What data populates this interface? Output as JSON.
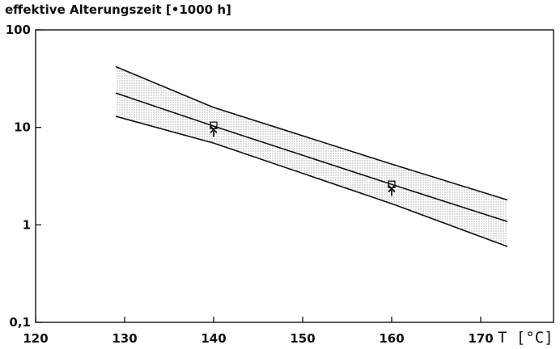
{
  "chart_data": {
    "type": "line",
    "title": "",
    "ylabel": "effektive Alterungszeit [•1000 h]",
    "xlabel": "T [°C]",
    "y_scale": "log",
    "xlim": [
      120,
      180
    ],
    "ylim": [
      0.1,
      100
    ],
    "x_ticks": [
      120,
      130,
      140,
      150,
      160,
      170
    ],
    "x_tick_labels": [
      "120",
      "130",
      "140",
      "150",
      "160",
      "170"
    ],
    "y_ticks": [
      0.1,
      1,
      10,
      100
    ],
    "y_tick_labels": [
      "0,1",
      "1",
      "10",
      "100"
    ],
    "grid": false,
    "legend": "none",
    "series": [
      {
        "role": "upper-bound",
        "x": [
          129,
          140,
          160,
          173
        ],
        "y": [
          42,
          16,
          4.2,
          1.8
        ]
      },
      {
        "role": "fit",
        "x": [
          129,
          140,
          160,
          173
        ],
        "y": [
          22.5,
          10.3,
          2.6,
          1.08
        ]
      },
      {
        "role": "lower-bound",
        "x": [
          129,
          140,
          160,
          173
        ],
        "y": [
          13,
          6.9,
          1.65,
          0.6
        ]
      }
    ],
    "band": {
      "fill": "stippled",
      "between": [
        "upper-bound",
        "lower-bound"
      ]
    },
    "points": [
      {
        "x": 140,
        "y": 10.5,
        "marker": "square"
      },
      {
        "x": 140,
        "y": 9.5,
        "marker": "cross"
      },
      {
        "x": 160,
        "y": 2.6,
        "marker": "square"
      },
      {
        "x": 160,
        "y": 2.35,
        "marker": "cross"
      }
    ],
    "colors": {
      "line": "#111111",
      "band_dots": "#555555",
      "background": "#ffffff"
    }
  }
}
